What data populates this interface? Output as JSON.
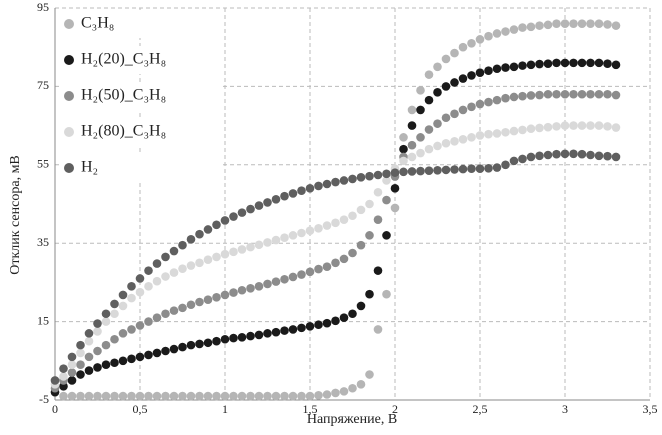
{
  "chart_data": {
    "type": "scatter",
    "xlabel": "Напряжение, В",
    "ylabel": "Отклик сенсора, мВ",
    "x": [
      0,
      0.05,
      0.1,
      0.15,
      0.2,
      0.25,
      0.3,
      0.35,
      0.4,
      0.45,
      0.5,
      0.55,
      0.6,
      0.65,
      0.7,
      0.75,
      0.8,
      0.85,
      0.9,
      0.95,
      1.0,
      1.05,
      1.1,
      1.15,
      1.2,
      1.25,
      1.3,
      1.35,
      1.4,
      1.45,
      1.5,
      1.55,
      1.6,
      1.65,
      1.7,
      1.75,
      1.8,
      1.85,
      1.9,
      1.95,
      2.0,
      2.05,
      2.1,
      2.15,
      2.2,
      2.25,
      2.3,
      2.35,
      2.4,
      2.45,
      2.5,
      2.55,
      2.6,
      2.65,
      2.7,
      2.75,
      2.8,
      2.85,
      2.9,
      2.95,
      3.0,
      3.05,
      3.1,
      3.15,
      3.2,
      3.25,
      3.3
    ],
    "series": [
      {
        "name": "C₃H₈",
        "color": "#b5b5b5",
        "values": [
          -3,
          -4,
          -4,
          -4,
          -4,
          -4,
          -4,
          -4,
          -4,
          -4,
          -4,
          -4,
          -4,
          -4,
          -4,
          -4,
          -4,
          -4,
          -4,
          -4,
          -4,
          -4,
          -4,
          -4,
          -4,
          -4,
          -4,
          -4,
          -4,
          -4,
          -4,
          -3.8,
          -3.6,
          -3.2,
          -2.8,
          -2,
          -1,
          1.5,
          13,
          22,
          44,
          62,
          69,
          74,
          78,
          80,
          82,
          83.5,
          85,
          86,
          87,
          87.8,
          88.5,
          89,
          89.5,
          90,
          90.2,
          90.5,
          90.7,
          91,
          91,
          91,
          91,
          91,
          91,
          90.8,
          90.5
        ]
      },
      {
        "name": "H₂(20)_C₃H₈",
        "color": "#1a1a1a",
        "values": [
          -3,
          -1.5,
          0,
          1.5,
          2.5,
          3.3,
          4,
          4.5,
          5,
          5.5,
          6,
          6.5,
          7,
          7.5,
          8,
          8.5,
          9,
          9.3,
          9.6,
          10,
          10.5,
          10.8,
          11,
          11.3,
          11.6,
          12,
          12.3,
          12.7,
          13,
          13.4,
          13.8,
          14.2,
          14.6,
          15.2,
          16,
          17,
          19,
          22,
          28,
          37,
          49,
          59,
          65,
          69,
          71.5,
          73.5,
          75,
          76,
          77,
          77.8,
          78.5,
          79,
          79.5,
          79.8,
          80,
          80.3,
          80.5,
          80.7,
          80.8,
          81,
          81,
          81,
          81,
          81,
          81,
          80.8,
          80.5
        ]
      },
      {
        "name": "H₂(50)_C₃H₈",
        "color": "#8c8c8c",
        "values": [
          -2,
          0,
          2,
          4,
          6,
          7.5,
          9,
          10.5,
          12,
          13,
          14,
          15,
          16,
          17,
          17.8,
          18.5,
          19.3,
          20,
          20.6,
          21.2,
          21.8,
          22.4,
          23,
          23.5,
          24,
          24.6,
          25.2,
          25.8,
          26.4,
          27,
          27.7,
          28.4,
          29,
          30,
          31,
          32.5,
          34.5,
          37,
          41,
          46,
          52,
          57,
          60,
          62,
          64,
          65.5,
          67,
          68,
          69,
          69.8,
          70.5,
          71,
          71.5,
          72,
          72.3,
          72.5,
          72.7,
          72.8,
          73,
          73,
          73,
          73,
          73,
          73,
          73,
          73,
          72.8
        ]
      },
      {
        "name": "H₂(80)_C₃H₈",
        "color": "#d9d9d9",
        "values": [
          -1,
          1,
          4,
          7,
          10,
          12.5,
          15,
          17,
          19,
          21,
          22.5,
          24,
          25.3,
          26.5,
          27.5,
          28.5,
          29.3,
          30,
          30.8,
          31.5,
          32.2,
          32.8,
          33.4,
          34,
          34.6,
          35.2,
          35.8,
          36.4,
          37,
          37.6,
          38.2,
          38.8,
          39.5,
          40.2,
          41,
          42,
          43.5,
          45,
          48,
          51,
          54,
          56,
          57,
          58,
          59,
          59.8,
          60.5,
          61,
          61.5,
          62,
          62.5,
          62.8,
          63,
          63.3,
          63.6,
          63.9,
          64.2,
          64.4,
          64.6,
          64.8,
          65,
          65,
          65,
          65,
          65,
          64.8,
          64.5
        ]
      },
      {
        "name": "H₂",
        "color": "#5f5f5f",
        "values": [
          0,
          3,
          6,
          9,
          12,
          14.5,
          17,
          19.5,
          21.8,
          24,
          26,
          28,
          29.8,
          31.5,
          33,
          34.5,
          36,
          37.3,
          38.5,
          39.7,
          40.8,
          41.8,
          42.8,
          43.7,
          44.6,
          45.4,
          46.2,
          47,
          47.7,
          48.4,
          49,
          49.6,
          50.1,
          50.6,
          51,
          51.4,
          51.8,
          52.1,
          52.4,
          52.7,
          53,
          53.2,
          53.3,
          53.4,
          53.5,
          53.6,
          53.7,
          53.8,
          53.9,
          54,
          54,
          54.1,
          54.3,
          55,
          56,
          56.5,
          57,
          57.3,
          57.5,
          57.7,
          57.8,
          57.8,
          57.7,
          57.5,
          57.3,
          57.2,
          57
        ]
      }
    ],
    "xlim": [
      0,
      3.5
    ],
    "xticks": [
      0,
      {
        "value": 0.5,
        "label": "0,5"
      },
      1,
      {
        "value": 1.5,
        "label": "1,5"
      },
      2,
      {
        "value": 2.5,
        "label": "2,5"
      },
      3,
      {
        "value": 3.5,
        "label": "3,5"
      }
    ],
    "ylim": [
      -5,
      95
    ],
    "yticks": [
      -5,
      15,
      35,
      55,
      75,
      95
    ],
    "grid": true,
    "legend": "upper left"
  }
}
